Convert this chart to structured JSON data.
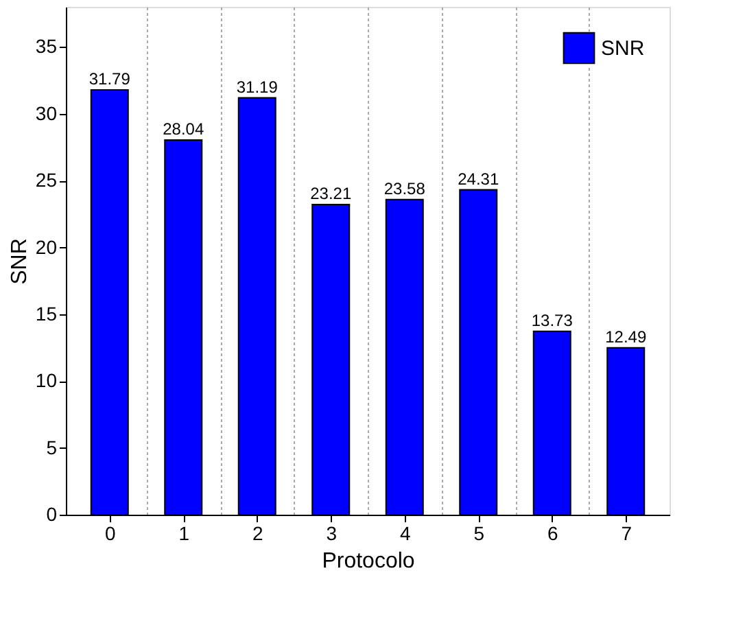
{
  "chart_data": {
    "type": "bar",
    "xlabel": "Protocolo",
    "ylabel": "SNR",
    "categories": [
      "0",
      "1",
      "2",
      "3",
      "4",
      "5",
      "6",
      "7"
    ],
    "series": [
      {
        "name": "SNR",
        "color": "#0000ff",
        "values": [
          31.79,
          28.04,
          31.19,
          23.21,
          23.58,
          24.31,
          13.73,
          12.49
        ]
      }
    ],
    "ylim": [
      0,
      38
    ],
    "yticks": [
      0,
      5,
      10,
      15,
      20,
      25,
      30,
      35
    ],
    "grid": "x",
    "legend": "top right",
    "data_labels": true
  }
}
